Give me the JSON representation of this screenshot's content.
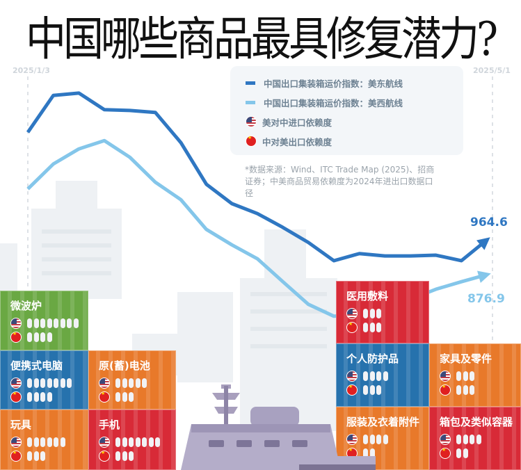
{
  "title": "中国哪些商品最具修复潜力?",
  "colors": {
    "east": "#2f77c2",
    "west": "#84c6ea",
    "green": "#6aa843",
    "blue": "#2672ad",
    "orange": "#e8792a",
    "red": "#d82a37"
  },
  "legend": {
    "east": "中国出口集装箱运价指数：美东航线",
    "west": "中国出口集装箱运价指数：美西航线",
    "us": "美对中进口依赖度",
    "cn": "中对美出口依赖度"
  },
  "source": "*数据来源：Wind、ITC Trade Map (2025)、招商证券；中美商品贸易依赖度为2024年进出口数据口径",
  "chart_data": {
    "type": "line",
    "x_start": "2025/1/3",
    "x_end": "2025/5/1",
    "series": [
      {
        "name": "中国出口集装箱运价指数：美东航线",
        "values": [
          1236,
          1329,
          1335,
          1293,
          1291,
          1286,
          1210,
          1105,
          1056,
          1031,
          996,
          958,
          912,
          930,
          924,
          924,
          926,
          912,
          964.6
        ],
        "end_label": "964.6"
      },
      {
        "name": "中国出口集装箱运价指数：美西航线",
        "values": [
          1093,
          1156,
          1194,
          1215,
          1173,
          1110,
          1066,
          991,
          952,
          917,
          859,
          802,
          772,
          777,
          784,
          815,
          840,
          859,
          876.9
        ],
        "end_label": "876.9"
      }
    ],
    "dependency": [
      {
        "name": "微波炉",
        "us": 8,
        "cn": 4,
        "color": "green"
      },
      {
        "name": "便携式电脑",
        "us": 7,
        "cn": 4,
        "color": "blue"
      },
      {
        "name": "原(蓄)电池",
        "us": 5,
        "cn": 3,
        "color": "orange"
      },
      {
        "name": "玩具",
        "us": 6,
        "cn": 3,
        "color": "orange"
      },
      {
        "name": "手机",
        "us": 7,
        "cn": 3,
        "color": "red"
      },
      {
        "name": "医用敷料",
        "us": 3,
        "cn": 3,
        "color": "red"
      },
      {
        "name": "个人防护品",
        "us": 4,
        "cn": 3,
        "color": "blue"
      },
      {
        "name": "家具及零件",
        "us": 3,
        "cn": 3,
        "color": "orange"
      },
      {
        "name": "服装及衣着附件",
        "us": 4,
        "cn": 2,
        "color": "orange"
      },
      {
        "name": "箱包及类似容器",
        "us": 4,
        "cn": 2,
        "color": "red"
      }
    ]
  }
}
